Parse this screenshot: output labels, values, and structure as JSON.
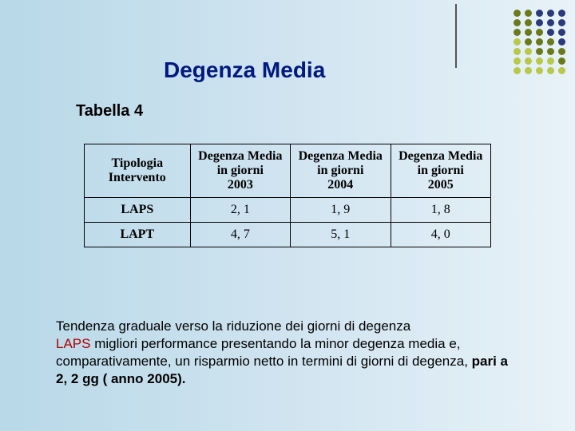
{
  "title": "Degenza Media",
  "subtitle": "Tabella 4",
  "table": {
    "columns": [
      "Tipologia Intervento",
      "Degenza Media\nin giorni\n2003",
      "Degenza Media\nin giorni\n2004",
      "Degenza Media\nin giorni\n2005"
    ],
    "col_widths": [
      "26%",
      "24.6%",
      "24.6%",
      "24.6%"
    ],
    "rows": [
      [
        "LAPS",
        "2, 1",
        "1, 9",
        "1, 8"
      ],
      [
        "LAPT",
        "4, 7",
        "5, 1",
        "4, 0"
      ]
    ]
  },
  "caption": {
    "line1": "Tendenza graduale verso la riduzione dei giorni di degenza",
    "red_word": "LAPS",
    "line2_rest": " migliori performance presentando la minor degenza media e, comparativamente, un risparmio netto in termini di giorni di degenza, ",
    "bold_part": "pari a 2, 2 gg ( anno 2005)."
  },
  "dot_colors": {
    "rows": [
      [
        "#6a7a1a",
        "#6a7a1a",
        "#2a3a7a",
        "#2a3a7a",
        "#2a3a7a"
      ],
      [
        "#6a7a1a",
        "#6a7a1a",
        "#2a3a7a",
        "#2a3a7a",
        "#2a3a7a"
      ],
      [
        "#6a7a1a",
        "#6a7a1a",
        "#6a7a1a",
        "#2a3a7a",
        "#2a3a7a"
      ],
      [
        "#b8c848",
        "#6a7a1a",
        "#6a7a1a",
        "#6a7a1a",
        "#2a3a7a"
      ],
      [
        "#b8c848",
        "#b8c848",
        "#6a7a1a",
        "#6a7a1a",
        "#6a7a1a"
      ],
      [
        "#b8c848",
        "#b8c848",
        "#b8c848",
        "#b8c848",
        "#6a7a1a"
      ],
      [
        "#b8c848",
        "#b8c848",
        "#b8c848",
        "#b8c848",
        "#b8c848"
      ]
    ]
  }
}
